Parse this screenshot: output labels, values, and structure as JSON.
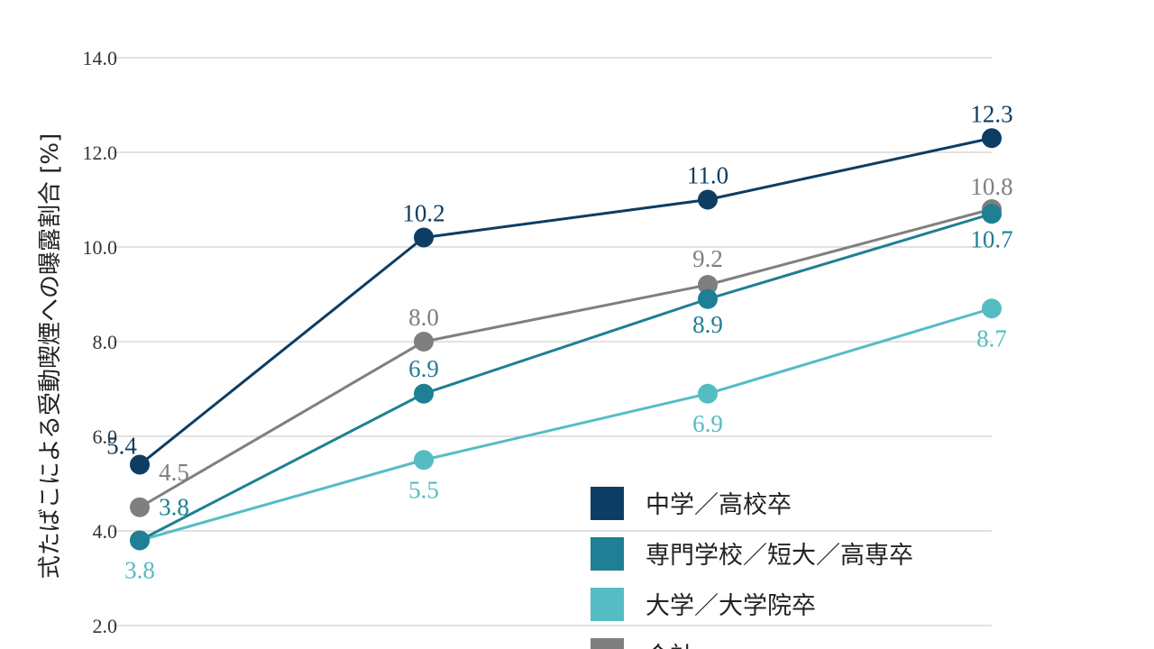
{
  "chart_data": {
    "type": "line",
    "ylabel": "式たばこによる受動喫煙への曝露割合 [%]",
    "yticks": [
      "2.0",
      "4.0",
      "6.0",
      "8.0",
      "10.0",
      "12.0",
      "14.0"
    ],
    "ylim": [
      0,
      14
    ],
    "x": [
      1,
      2,
      3,
      4
    ],
    "grid": true,
    "legend_position": "bottom-right",
    "series": [
      {
        "name": "中学／高校卒",
        "color": "#0d3d63",
        "values": [
          5.4,
          10.2,
          11.0,
          12.3
        ],
        "labels": [
          "5.4",
          "10.2",
          "11.0",
          "12.3"
        ]
      },
      {
        "name": "専門学校／短大／高専卒",
        "color": "#1f7f94",
        "values": [
          3.8,
          6.9,
          8.9,
          10.7
        ],
        "labels": [
          "3.8",
          "6.9",
          "8.9",
          "10.7"
        ]
      },
      {
        "name": "大学／大学院卒",
        "color": "#55bcc4",
        "values": [
          3.8,
          5.5,
          6.9,
          8.7
        ],
        "labels": [
          "3.8",
          "5.5",
          "6.9",
          "8.7"
        ]
      },
      {
        "name": "合計",
        "color": "#7f7f7f",
        "values": [
          4.5,
          8.0,
          9.2,
          10.8
        ],
        "labels": [
          "4.5",
          "8.0",
          "9.2",
          "10.8"
        ]
      }
    ]
  }
}
